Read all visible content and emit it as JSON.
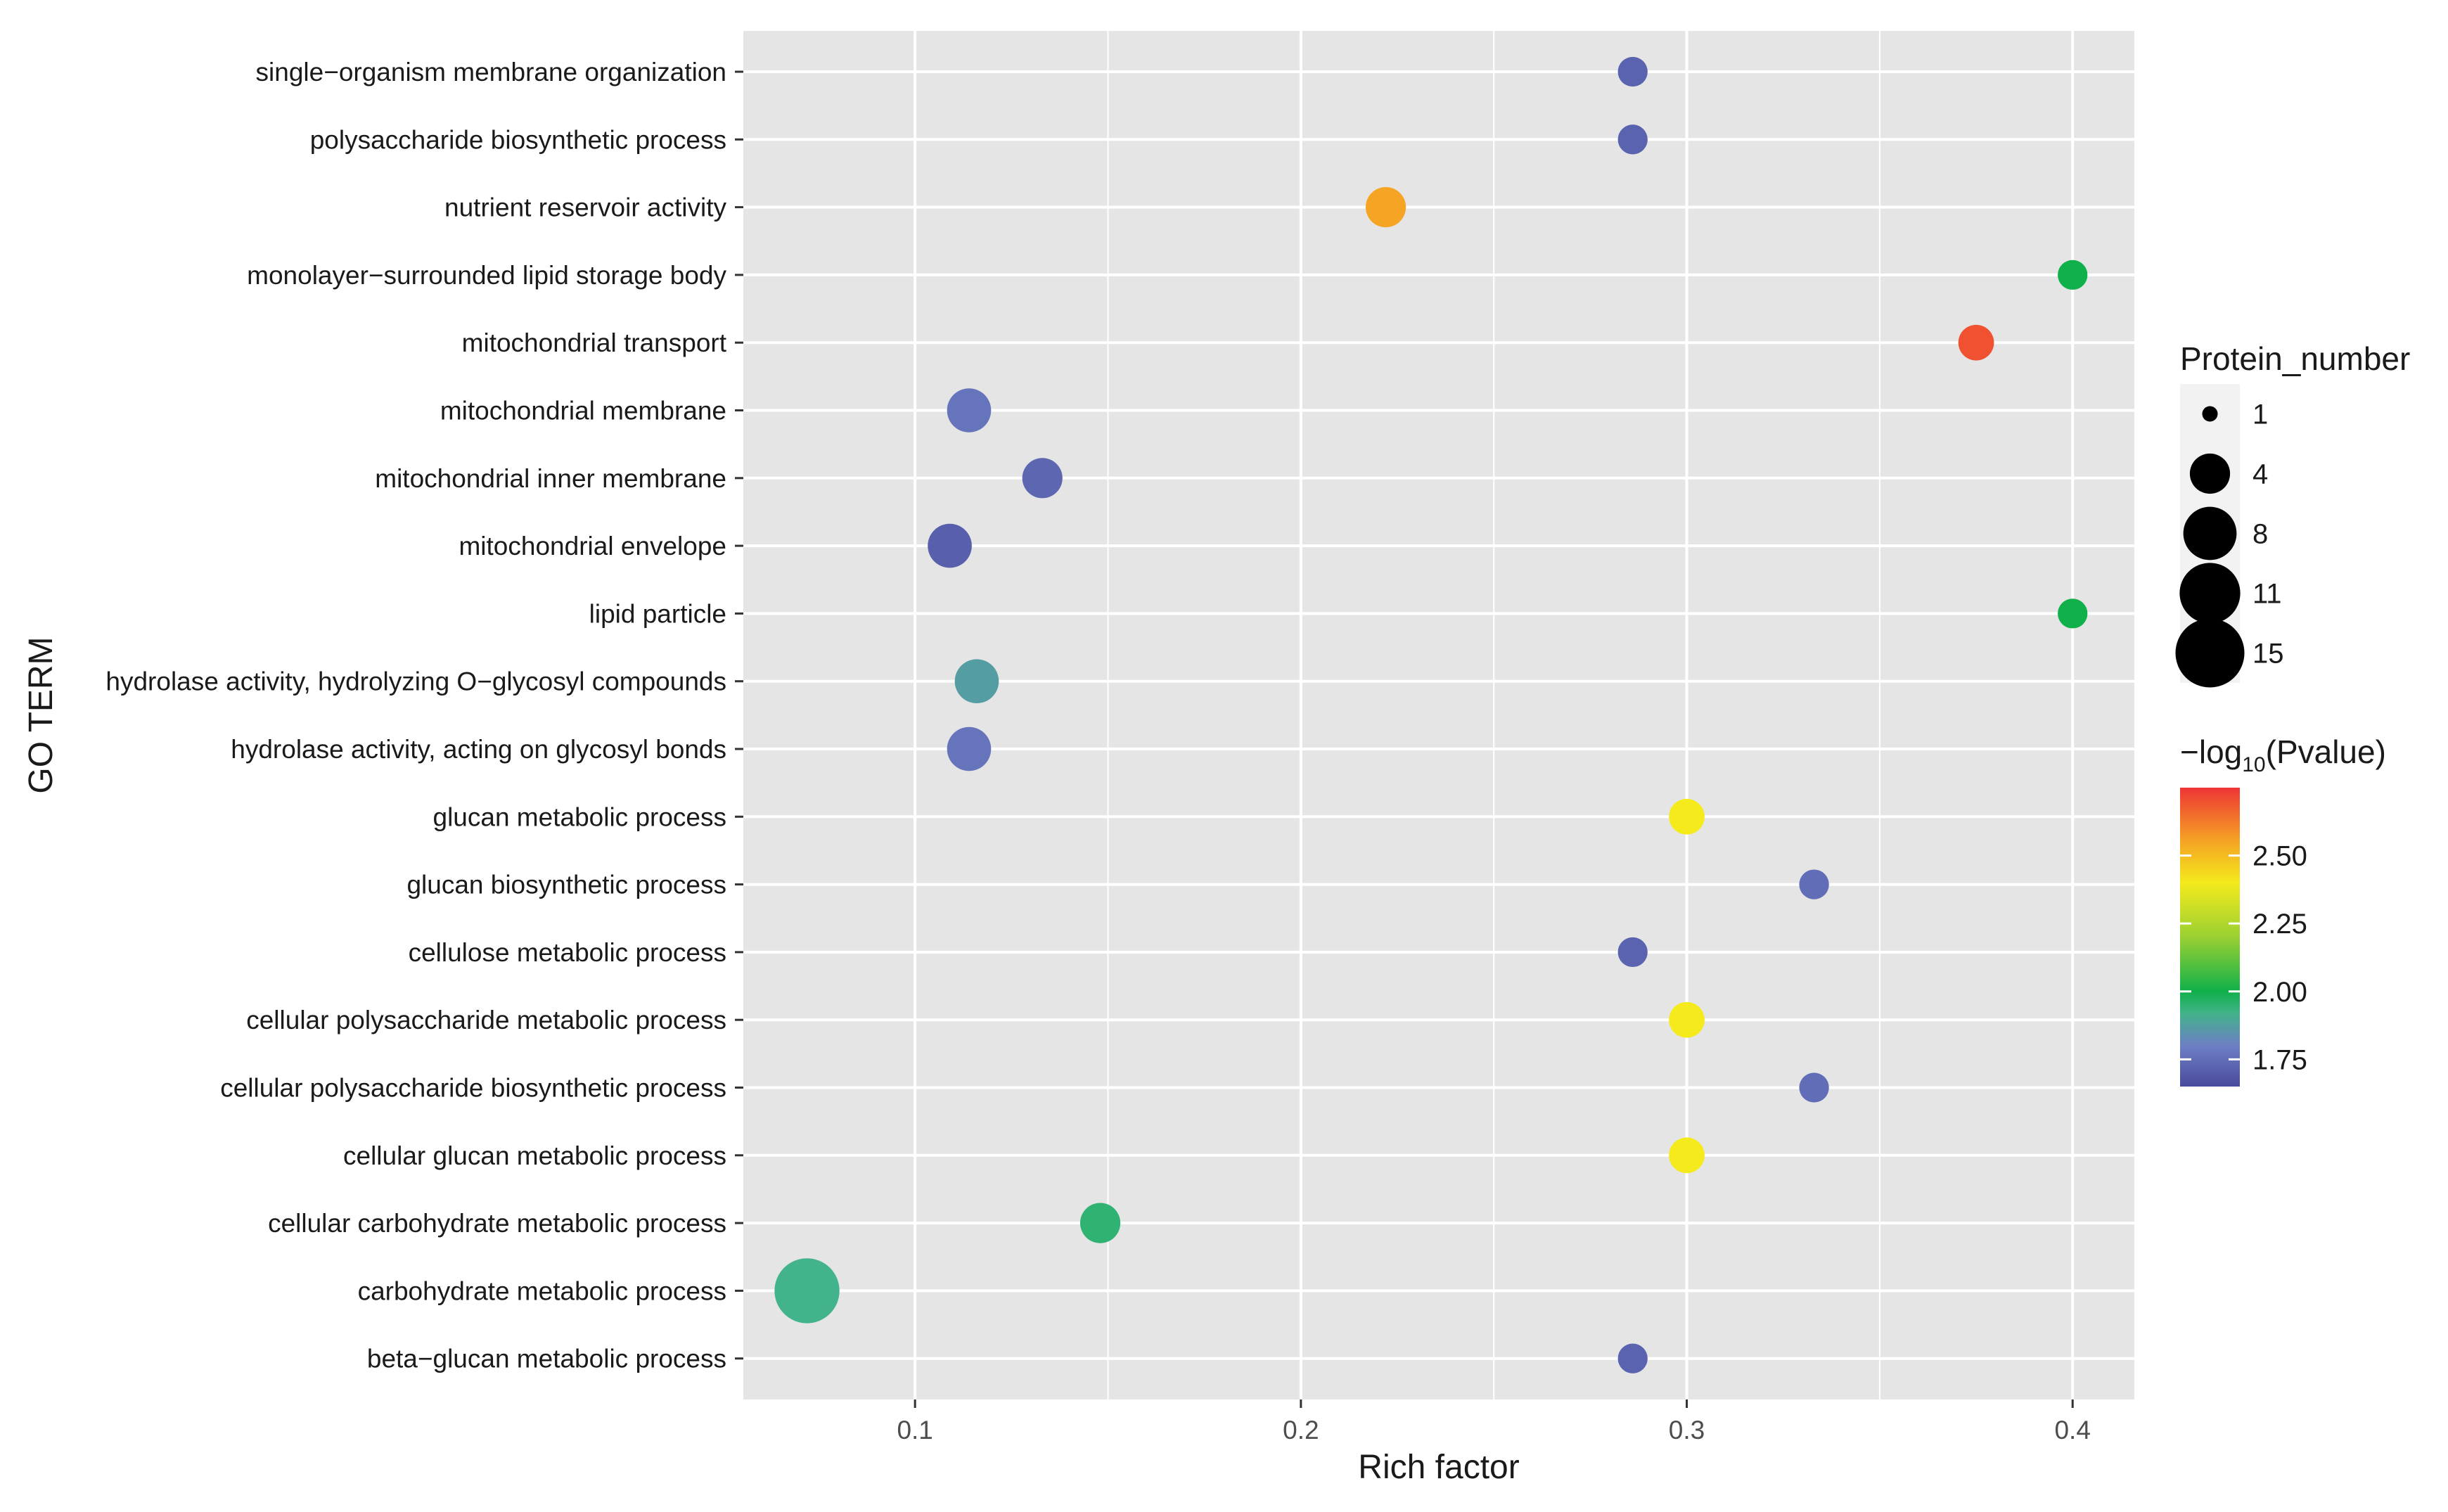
{
  "chart_data": {
    "type": "scatter",
    "title": "",
    "xlabel": "Rich factor",
    "ylabel": "GO TERM",
    "xlim": [
      0.0555,
      0.416
    ],
    "xticks": [
      0.1,
      0.2,
      0.3,
      0.4
    ],
    "xtick_labels": [
      "0.1",
      "0.2",
      "0.3",
      "0.4"
    ],
    "grid": true,
    "categories": [
      "single−organism membrane organization",
      "polysaccharide biosynthetic process",
      "nutrient reservoir activity",
      "monolayer−surrounded lipid storage body",
      "mitochondrial transport",
      "mitochondrial membrane",
      "mitochondrial inner membrane",
      "mitochondrial envelope",
      "lipid particle",
      "hydrolase activity, hydrolyzing O−glycosyl compounds",
      "hydrolase activity, acting on glycosyl bonds",
      "glucan metabolic process",
      "glucan biosynthetic process",
      "cellulose metabolic process",
      "cellular polysaccharide metabolic process",
      "cellular polysaccharide biosynthetic process",
      "cellular glucan metabolic process",
      "cellular carbohydrate metabolic process",
      "carbohydrate metabolic process",
      "beta−glucan metabolic process"
    ],
    "points": [
      {
        "term": "single−organism membrane organization",
        "rich_factor": 0.286,
        "protein_number": 2,
        "neg_log10_pvalue": 1.72
      },
      {
        "term": "polysaccharide biosynthetic process",
        "rich_factor": 0.286,
        "protein_number": 2,
        "neg_log10_pvalue": 1.72
      },
      {
        "term": "nutrient reservoir activity",
        "rich_factor": 0.222,
        "protein_number": 4,
        "neg_log10_pvalue": 2.55
      },
      {
        "term": "monolayer−surrounded lipid storage body",
        "rich_factor": 0.4,
        "protein_number": 2,
        "neg_log10_pvalue": 2.0
      },
      {
        "term": "mitochondrial transport",
        "rich_factor": 0.375,
        "protein_number": 3,
        "neg_log10_pvalue": 2.7
      },
      {
        "term": "mitochondrial membrane",
        "rich_factor": 0.114,
        "protein_number": 5,
        "neg_log10_pvalue": 1.77
      },
      {
        "term": "mitochondrial inner membrane",
        "rich_factor": 0.133,
        "protein_number": 4,
        "neg_log10_pvalue": 1.73
      },
      {
        "term": "mitochondrial envelope",
        "rich_factor": 0.109,
        "protein_number": 5,
        "neg_log10_pvalue": 1.71
      },
      {
        "term": "lipid particle",
        "rich_factor": 0.4,
        "protein_number": 2,
        "neg_log10_pvalue": 2.0
      },
      {
        "term": "hydrolase activity, hydrolyzing O−glycosyl compounds",
        "rich_factor": 0.116,
        "protein_number": 5,
        "neg_log10_pvalue": 1.87
      },
      {
        "term": "hydrolase activity, acting on glycosyl bonds",
        "rich_factor": 0.114,
        "protein_number": 5,
        "neg_log10_pvalue": 1.77
      },
      {
        "term": "glucan metabolic process",
        "rich_factor": 0.3,
        "protein_number": 3,
        "neg_log10_pvalue": 2.4
      },
      {
        "term": "glucan biosynthetic process",
        "rich_factor": 0.333,
        "protein_number": 2,
        "neg_log10_pvalue": 1.75
      },
      {
        "term": "cellulose metabolic process",
        "rich_factor": 0.286,
        "protein_number": 2,
        "neg_log10_pvalue": 1.72
      },
      {
        "term": "cellular polysaccharide metabolic process",
        "rich_factor": 0.3,
        "protein_number": 3,
        "neg_log10_pvalue": 2.4
      },
      {
        "term": "cellular polysaccharide biosynthetic process",
        "rich_factor": 0.333,
        "protein_number": 2,
        "neg_log10_pvalue": 1.75
      },
      {
        "term": "cellular glucan metabolic process",
        "rich_factor": 0.3,
        "protein_number": 3,
        "neg_log10_pvalue": 2.4
      },
      {
        "term": "cellular carbohydrate metabolic process",
        "rich_factor": 0.148,
        "protein_number": 4,
        "neg_log10_pvalue": 1.95
      },
      {
        "term": "carbohydrate metabolic process",
        "rich_factor": 0.072,
        "protein_number": 13,
        "neg_log10_pvalue": 1.92
      },
      {
        "term": "beta−glucan metabolic process",
        "rich_factor": 0.286,
        "protein_number": 2,
        "neg_log10_pvalue": 1.72
      }
    ],
    "size_legend": {
      "title": "Protein_number",
      "values": [
        1,
        4,
        8,
        11,
        15
      ],
      "labels": [
        "1",
        "4",
        "8",
        "11",
        "15"
      ]
    },
    "color_legend": {
      "title_prefix": "−log",
      "title_sub": "10",
      "title_suffix": "(Pvalue)",
      "range": [
        1.65,
        2.75
      ],
      "ticks": [
        1.75,
        2.0,
        2.25,
        2.5
      ],
      "tick_labels": [
        "1.75",
        "2.00",
        "2.25",
        "2.50"
      ],
      "stops": [
        {
          "value": 1.65,
          "color": "#4a4a9c"
        },
        {
          "value": 1.8,
          "color": "#6d7fc4"
        },
        {
          "value": 1.92,
          "color": "#42b38a"
        },
        {
          "value": 2.0,
          "color": "#10b04a"
        },
        {
          "value": 2.2,
          "color": "#9ad032"
        },
        {
          "value": 2.4,
          "color": "#f4ea1c"
        },
        {
          "value": 2.55,
          "color": "#f5a523"
        },
        {
          "value": 2.75,
          "color": "#ee3535"
        }
      ]
    },
    "panel_background": "#e5e5e5",
    "grid_color": "#ffffff"
  }
}
